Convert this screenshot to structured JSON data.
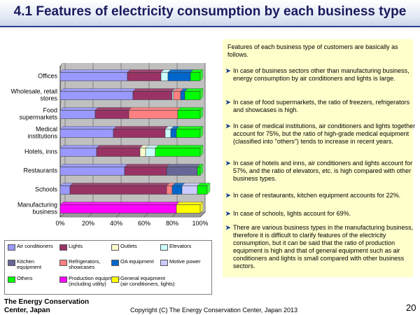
{
  "title": "4.1 Features of electricity consumption by each business type",
  "chart_data": {
    "type": "bar",
    "orientation": "horizontal-stacked-100",
    "categories": [
      "Offices",
      "Wholesale, retail stores",
      "Food supermarkets",
      "Medical institutions",
      "Hotels, inns",
      "Restaurants",
      "Schools",
      "Manufacturing business"
    ],
    "category_lines": [
      [
        "Offices"
      ],
      [
        "Wholesale, retail",
        "stores"
      ],
      [
        "Food",
        "supermarkets"
      ],
      [
        "Medical",
        "institutions"
      ],
      [
        "Hotels, inns"
      ],
      [
        "Restaurants"
      ],
      [
        "Schools"
      ],
      [
        "Manufacturing",
        "business"
      ]
    ],
    "xticks": [
      "0%",
      "20%",
      "40%",
      "60%",
      "80%",
      "100%"
    ],
    "xlim": [
      0,
      100
    ],
    "series": [
      {
        "name": "Air conditioners",
        "color": "#9999ff",
        "values": [
          48,
          52,
          25,
          38,
          26,
          46,
          7,
          0
        ]
      },
      {
        "name": "Lights",
        "color": "#993366",
        "values": [
          24,
          28,
          24,
          37,
          31,
          30,
          69,
          0
        ]
      },
      {
        "name": "Outlets",
        "color": "#ffffcc",
        "values": [
          0,
          0,
          0,
          0,
          4,
          0,
          0,
          0
        ]
      },
      {
        "name": "Elevators",
        "color": "#ccffff",
        "values": [
          5,
          1,
          0,
          4,
          7,
          0,
          0,
          0
        ]
      },
      {
        "name": "Kitchen equipment",
        "color": "#666699",
        "values": [
          0,
          0,
          0,
          0,
          0,
          22,
          0,
          0
        ]
      },
      {
        "name": "Refrigerators, showcases",
        "color": "#ff8080",
        "values": [
          0,
          5,
          35,
          0,
          0,
          0,
          4,
          0
        ]
      },
      {
        "name": "OA equipment",
        "color": "#0066cc",
        "values": [
          16,
          3,
          0,
          4,
          0,
          0,
          7,
          0
        ]
      },
      {
        "name": "Motive power",
        "color": "#ccccff",
        "values": [
          0,
          0,
          0,
          0,
          0,
          0,
          11,
          0
        ]
      },
      {
        "name": "Others",
        "color": "#00ff00",
        "values": [
          7,
          11,
          16,
          17,
          32,
          2,
          7,
          0
        ]
      },
      {
        "name": "Production equipment (including utility)",
        "color": "#ff00ff",
        "values": [
          0,
          0,
          0,
          0,
          0,
          0,
          0,
          83
        ]
      },
      {
        "name": "General equipment (air conditioners, lights)",
        "color": "#ffff00",
        "values": [
          0,
          0,
          0,
          0,
          0,
          0,
          0,
          17
        ]
      }
    ]
  },
  "legend": [
    {
      "label": "Air conditioners",
      "label2": "",
      "color": "#9999ff"
    },
    {
      "label": "Lights",
      "label2": "",
      "color": "#993366"
    },
    {
      "label": "Outlets",
      "label2": "",
      "color": "#ffffcc"
    },
    {
      "label": "Elevators",
      "label2": "",
      "color": "#ccffff"
    },
    {
      "label": "Kitchen",
      "label2": "equipment",
      "color": "#666699"
    },
    {
      "label": "Refrigerators,",
      "label2": "showcases",
      "color": "#ff8080"
    },
    {
      "label": "OA equipment",
      "label2": "",
      "color": "#0066cc"
    },
    {
      "label": "Motive power",
      "label2": "",
      "color": "#ccccff"
    },
    {
      "label": "Others",
      "label2": "",
      "color": "#00ff00"
    },
    {
      "label": "Production equipment",
      "label2": "(including utility)",
      "color": "#ff00ff"
    },
    {
      "label": "General equipment",
      "label2": "(air conditioners, lights)",
      "color": "#ffff00"
    }
  ],
  "text_panel": {
    "intro": "Features of each business type of customers are basically as follows.",
    "bullets": [
      "In case of business sectors other than manufacturing business, energy consumption by air conditioners and lights is large.",
      "In case of food supermarkets, the ratio of freezers, refrigerators and showcases is high.",
      "In case of medical institutions, air conditioners and lights together account for 75%, but the ratio of high-grade medical equipment (classified into \"others\") tends to increase in recent years.",
      "In case of hotels and inns, air conditioners and lights account for 57%, and the ratio of elevators, etc. is high compared with other business types.",
      "In case of restaurants, kitchen equipment accounts for 22%.",
      "In case of schools, lights account for 69%.",
      "There are various business types in the manufacturing business, therefore it is difficult to clarify features of the electricity consumption, but it can be said that the ratio of production equipment is high and that of general equipment such as air conditioners and lights is small compared with other business sectors."
    ]
  },
  "footer": {
    "org_line1": "The Energy Conservation",
    "org_line2": "Center, Japan",
    "copyright": "Copyright (C) The Energy Conservation Center, Japan 2013",
    "page": "20"
  }
}
